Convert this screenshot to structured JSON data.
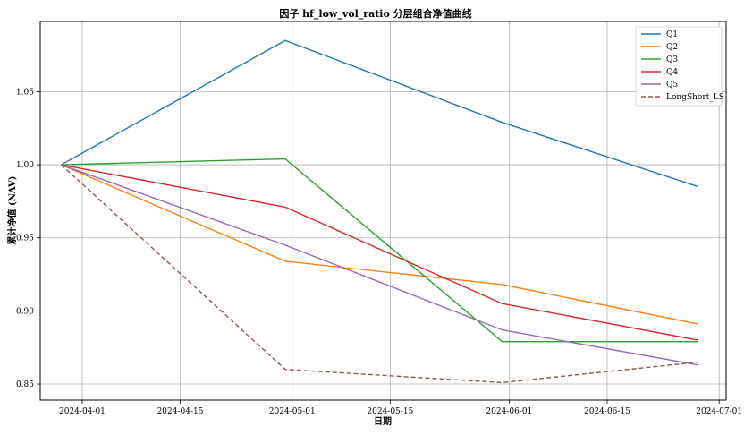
{
  "chart_data": {
    "type": "line",
    "title": "因子 hf_low_vol_ratio 分层组合净值曲线",
    "xlabel": "日期",
    "ylabel": "累计净值 (NAV)",
    "x": [
      "2024-03-29",
      "2024-04-30",
      "2024-05-31",
      "2024-06-28"
    ],
    "xlim": [
      "2024-03-26",
      "2024-07-02"
    ],
    "xticks": [
      "2024-04-01",
      "2024-04-15",
      "2024-05-01",
      "2024-05-15",
      "2024-06-01",
      "2024-06-15",
      "2024-07-01"
    ],
    "ylim": [
      0.839,
      1.098
    ],
    "yticks": [
      "0.85",
      "0.90",
      "0.95",
      "1.00",
      "1.05"
    ],
    "grid": true,
    "legend_position": "top-right",
    "series": [
      {
        "name": "Q1",
        "color": "#1f77b4",
        "style": "solid",
        "values": [
          1.0,
          1.085,
          1.029,
          0.985
        ]
      },
      {
        "name": "Q2",
        "color": "#ff7f0e",
        "style": "solid",
        "values": [
          1.0,
          0.934,
          0.918,
          0.891
        ]
      },
      {
        "name": "Q3",
        "color": "#2ca02c",
        "style": "solid",
        "values": [
          1.0,
          1.004,
          0.879,
          0.879
        ]
      },
      {
        "name": "Q4",
        "color": "#d62728",
        "style": "solid",
        "values": [
          1.0,
          0.971,
          0.905,
          0.88
        ]
      },
      {
        "name": "Q5",
        "color": "#9467bd",
        "style": "solid",
        "values": [
          1.0,
          0.945,
          0.887,
          0.863
        ]
      },
      {
        "name": "LongShort_LS",
        "color": "#8c564b",
        "style": "dashed",
        "values": [
          1.0,
          0.86,
          0.851,
          0.865
        ]
      }
    ]
  }
}
